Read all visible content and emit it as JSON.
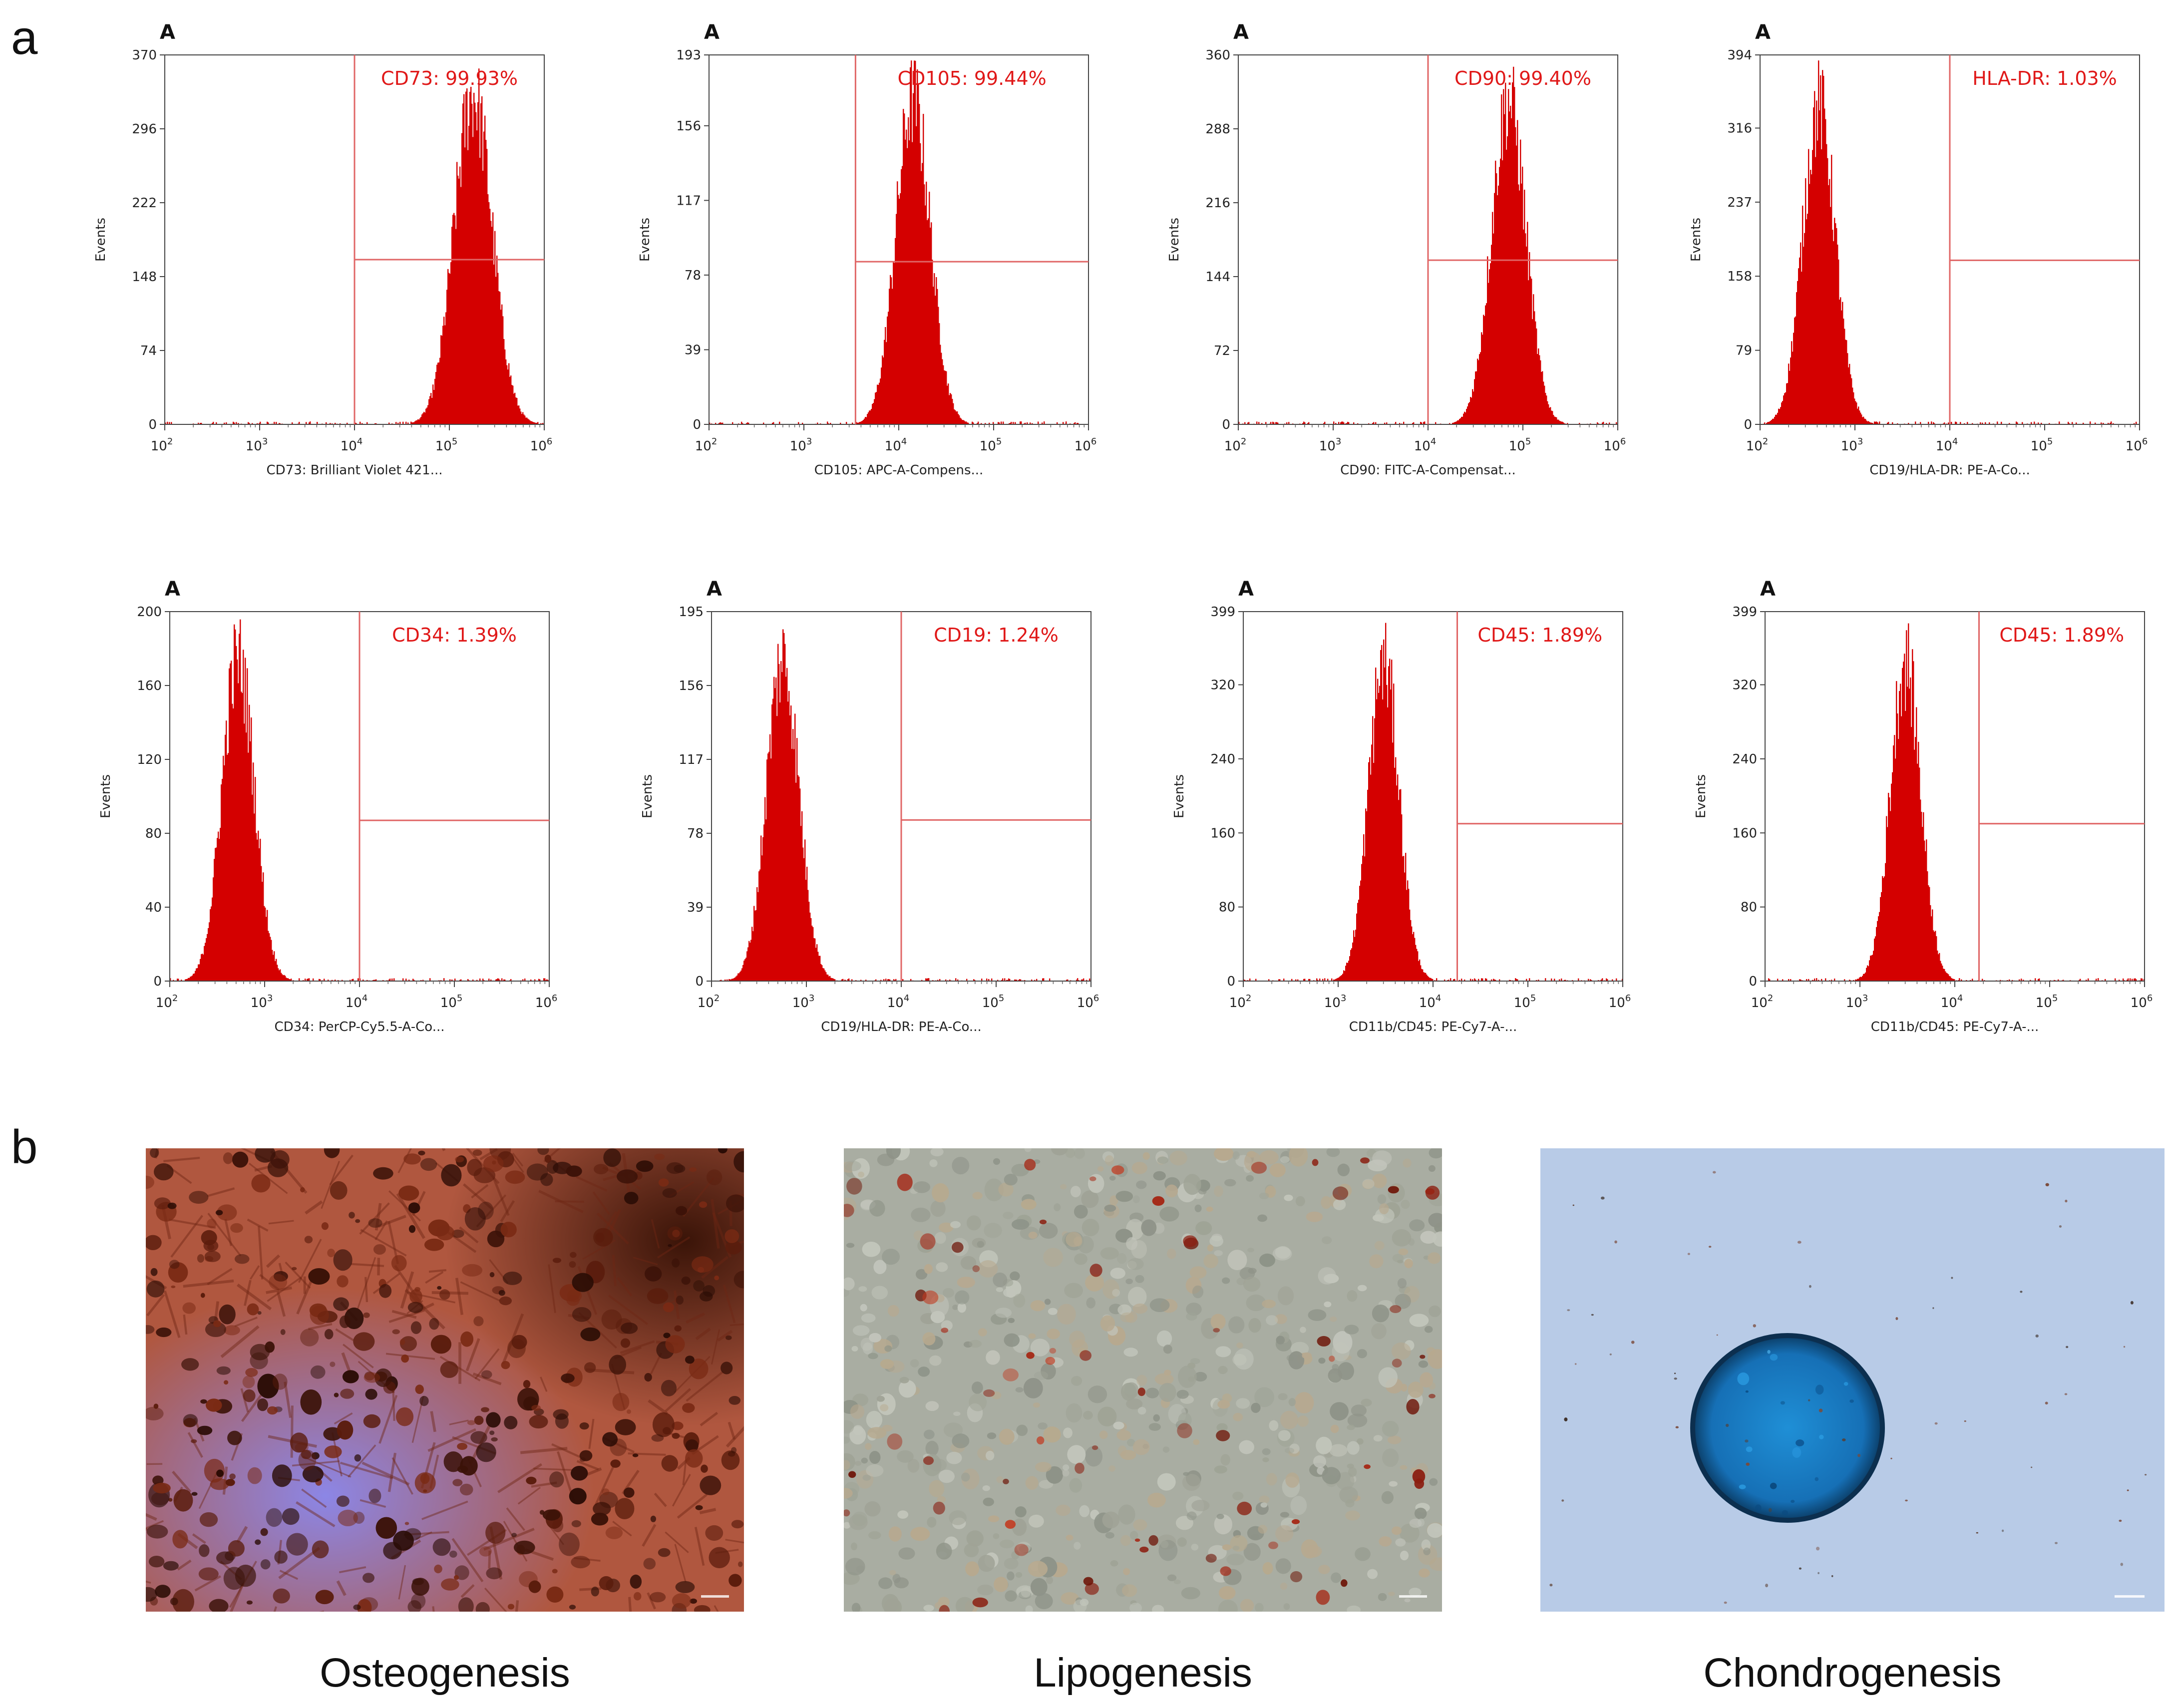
{
  "panels": {
    "a": "a",
    "b": "b"
  },
  "colors": {
    "histogram": "#d40000",
    "gate": "#e06666",
    "gate_text": "#e01818",
    "axis": "#333333"
  },
  "chart_data": [
    {
      "type": "histogram",
      "plot_label": "A",
      "gate_label": "CD73: 99.93%",
      "xlabel": "CD73: Brilliant Violet 421...",
      "ylabel": "Events",
      "yticks": [
        0,
        74,
        148,
        222,
        296,
        370
      ],
      "ylim": [
        0,
        370
      ],
      "x_scale": "log",
      "xlim": [
        100,
        1000000
      ],
      "xticks": [
        2,
        3,
        4,
        5,
        6
      ],
      "gate_x": 10000,
      "gate_y": 165,
      "peak_x_log": 5.25,
      "peak_width_log": 0.2,
      "peak_y": 340
    },
    {
      "type": "histogram",
      "plot_label": "A",
      "gate_label": "CD105: 99.44%",
      "xlabel": "CD105: APC-A-Compens...",
      "ylabel": "Events",
      "yticks": [
        0,
        39,
        78,
        117,
        156,
        193
      ],
      "ylim": [
        0,
        193
      ],
      "x_scale": "log",
      "xlim": [
        100,
        1000000
      ],
      "xticks": [
        2,
        3,
        4,
        5,
        6
      ],
      "gate_x": 3500,
      "gate_y": 85,
      "peak_x_log": 4.15,
      "peak_width_log": 0.18,
      "peak_y": 175
    },
    {
      "type": "histogram",
      "plot_label": "A",
      "gate_label": "CD90: 99.40%",
      "xlabel": "CD90: FITC-A-Compensat...",
      "ylabel": "Events",
      "yticks": [
        0,
        72,
        144,
        216,
        288,
        360
      ],
      "ylim": [
        0,
        360
      ],
      "x_scale": "log",
      "xlim": [
        100,
        1000000
      ],
      "xticks": [
        2,
        3,
        4,
        5,
        6
      ],
      "gate_x": 10000,
      "gate_y": 160,
      "peak_x_log": 4.85,
      "peak_width_log": 0.18,
      "peak_y": 325
    },
    {
      "type": "histogram",
      "plot_label": "A",
      "gate_label": "HLA-DR: 1.03%",
      "xlabel": "CD19/HLA-DR: PE-A-Co...",
      "ylabel": "Events",
      "yticks": [
        0,
        79,
        158,
        237,
        316,
        394
      ],
      "ylim": [
        0,
        394
      ],
      "x_scale": "log",
      "xlim": [
        100,
        1000000
      ],
      "xticks": [
        2,
        3,
        4,
        5,
        6
      ],
      "gate_x": 10000,
      "gate_y": 175,
      "peak_x_log": 2.62,
      "peak_width_log": 0.17,
      "peak_y": 350
    },
    {
      "type": "histogram",
      "plot_label": "A",
      "gate_label": "CD34: 1.39%",
      "xlabel": "CD34: PerCP-Cy5.5-A-Co...",
      "ylabel": "Events",
      "yticks": [
        0,
        40,
        80,
        120,
        160,
        200
      ],
      "ylim": [
        0,
        200
      ],
      "x_scale": "log",
      "xlim": [
        100,
        1000000
      ],
      "xticks": [
        2,
        3,
        4,
        5,
        6
      ],
      "gate_x": 10000,
      "gate_y": 87,
      "peak_x_log": 2.72,
      "peak_width_log": 0.17,
      "peak_y": 180
    },
    {
      "type": "histogram",
      "plot_label": "A",
      "gate_label": "CD19: 1.24%",
      "xlabel": "CD19/HLA-DR: PE-A-Co...",
      "ylabel": "Events",
      "yticks": [
        0,
        39,
        78,
        117,
        156,
        195
      ],
      "ylim": [
        0,
        195
      ],
      "x_scale": "log",
      "xlim": [
        100,
        1000000
      ],
      "xticks": [
        2,
        3,
        4,
        5,
        6
      ],
      "gate_x": 10000,
      "gate_y": 85,
      "peak_x_log": 2.75,
      "peak_width_log": 0.17,
      "peak_y": 175
    },
    {
      "type": "histogram",
      "plot_label": "A",
      "gate_label": "CD45: 1.89%",
      "xlabel": "CD11b/CD45: PE-Cy7-A-...",
      "ylabel": "Events",
      "yticks": [
        0,
        80,
        160,
        240,
        320,
        399
      ],
      "ylim": [
        0,
        399
      ],
      "x_scale": "log",
      "xlim": [
        100,
        1000000
      ],
      "xticks": [
        2,
        3,
        4,
        5,
        6
      ],
      "gate_x": 18000,
      "gate_y": 170,
      "peak_x_log": 3.48,
      "peak_width_log": 0.16,
      "peak_y": 355
    },
    {
      "type": "histogram",
      "plot_label": "A",
      "gate_label": "CD45: 1.89%",
      "xlabel": "CD11b/CD45: PE-Cy7-A-...",
      "ylabel": "Events",
      "yticks": [
        0,
        80,
        160,
        240,
        320,
        399
      ],
      "ylim": [
        0,
        399
      ],
      "x_scale": "log",
      "xlim": [
        100,
        1000000
      ],
      "xticks": [
        2,
        3,
        4,
        5,
        6
      ],
      "gate_x": 18000,
      "gate_y": 170,
      "peak_x_log": 3.48,
      "peak_width_log": 0.16,
      "peak_y": 355
    }
  ],
  "micrographs": [
    {
      "caption": "Osteogenesis",
      "stain": "alizarin-red"
    },
    {
      "caption": "Lipogenesis",
      "stain": "oil-red-o"
    },
    {
      "caption": "Chondrogenesis",
      "stain": "alcian-blue"
    }
  ]
}
